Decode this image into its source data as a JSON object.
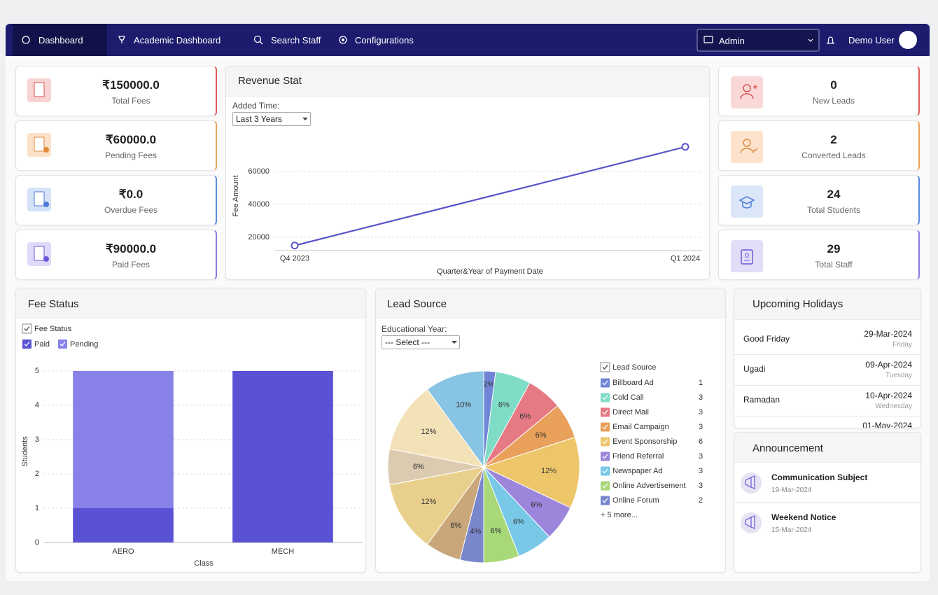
{
  "nav": {
    "items": [
      "Dashboard",
      "Academic Dashboard",
      "Search Staff",
      "Configurations"
    ],
    "role": "Admin",
    "user": "Demo User"
  },
  "fee_cards": [
    {
      "value": "₹150000.0",
      "label": "Total Fees"
    },
    {
      "value": "₹60000.0",
      "label": "Pending Fees"
    },
    {
      "value": "₹0.0",
      "label": "Overdue Fees"
    },
    {
      "value": "₹90000.0",
      "label": "Paid Fees"
    }
  ],
  "lead_cards": [
    {
      "value": 0,
      "label": "New Leads"
    },
    {
      "value": 2,
      "label": "Converted Leads"
    },
    {
      "value": 24,
      "label": "Total Students"
    },
    {
      "value": 29,
      "label": "Total Staff"
    }
  ],
  "holidays": {
    "title": "Upcoming Holidays",
    "items": [
      {
        "name": "Good Friday",
        "date": "29-Mar-2024",
        "day": "Friday"
      },
      {
        "name": "Ugadi",
        "date": "09-Apr-2024",
        "day": "Tuesday"
      },
      {
        "name": "Ramadan",
        "date": "10-Apr-2024",
        "day": "Wednesday"
      },
      {
        "date": "01-May-2024"
      }
    ]
  },
  "announcements": {
    "title": "Announcement",
    "items": [
      {
        "subject": "Communication Subject",
        "date": "19-Mar-2024"
      },
      {
        "subject": "Weekend Notice",
        "date": "15-Mar-2024"
      }
    ]
  },
  "chart_data": [
    {
      "type": "line",
      "title": "Revenue Stat",
      "filter_label": "Added Time:",
      "filter_value": "Last 3 Years",
      "categories": [
        "Q4 2023",
        "Q1 2024"
      ],
      "values": [
        15000,
        75000
      ],
      "color": "#5b55c8",
      "x_label": "Quarter&Year of Payment Date",
      "y_label": "Fee Amount",
      "ylim": [
        12000,
        83000
      ],
      "yticks": [
        20000,
        40000,
        60000
      ],
      "grid": true
    },
    {
      "type": "bar",
      "stacked": true,
      "title": "Fee Status",
      "legend_title": "Fee Status",
      "categories": [
        "AERO",
        "MECH"
      ],
      "series": [
        {
          "name": "Paid",
          "color": "#5a52d5",
          "values": [
            1,
            5
          ]
        },
        {
          "name": "Pending",
          "color": "#8781e8",
          "values": [
            4,
            0
          ]
        }
      ],
      "x_label": "Class",
      "y_label": "Students",
      "ylim": [
        0,
        5
      ],
      "yticks": [
        0,
        1,
        2,
        3,
        4,
        5
      ],
      "grid": true
    },
    {
      "type": "pie",
      "title": "Lead Source",
      "filter_label": "Educational Year:",
      "filter_value": "--- Select ---",
      "legend_title": "Lead Source",
      "legend_more": "+ 5 more...",
      "categories": [
        "Billboard Ad",
        "Cold Call",
        "Direct Mail",
        "Email Campaign",
        "Event Sponsorship",
        "Friend Referral",
        "Newspaper Ad",
        "Online Advertisement",
        "Online Forum",
        null,
        null,
        null,
        null,
        null
      ],
      "values": [
        1,
        3,
        3,
        3,
        6,
        3,
        3,
        3,
        2,
        3,
        6,
        3,
        6,
        5
      ],
      "value_labels": [
        "2%",
        "6%",
        "6%",
        "6%",
        "12%",
        "6%",
        "6%",
        "6%",
        "4%",
        "6%",
        "12%",
        "6%",
        "12%",
        "10%"
      ],
      "colors": [
        "#6f86d6",
        "#7fdcc6",
        "#e57a84",
        "#e8a05a",
        "#eec66a",
        "#9b86dc",
        "#78c8e8",
        "#a8d878",
        "#7a86cc",
        "#c9a77a",
        "#e8d08c",
        "#dccbb0",
        "#f3e2b8",
        "#88c4e4"
      ]
    }
  ]
}
